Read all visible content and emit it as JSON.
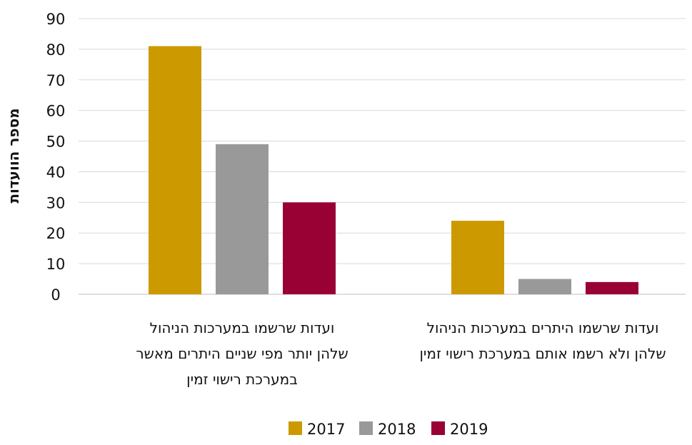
{
  "chart_data": {
    "type": "bar",
    "categories": [
      [
        "ועדות שרשמו במערכות הניהול",
        "שלהן יותר מפי שניים היתרים מאשר",
        "במערכת רישוי זמין"
      ],
      [
        "ועדות שרשמו היתרים במערכות הניהול",
        "שלהן ולא רשמו אותם במערכת רישוי זמין"
      ]
    ],
    "series": [
      {
        "name": "2017",
        "color": "#CC9900",
        "values": [
          81,
          24
        ]
      },
      {
        "name": "2018",
        "color": "#999999",
        "values": [
          49,
          5
        ]
      },
      {
        "name": "2019",
        "color": "#990033",
        "values": [
          30,
          4
        ]
      }
    ],
    "ylabel": "מספר הוועדות",
    "ylim": [
      0,
      90
    ],
    "yticks": [
      0,
      10,
      20,
      30,
      40,
      50,
      60,
      70,
      80,
      90
    ],
    "grid": true,
    "legend": "bottom"
  }
}
